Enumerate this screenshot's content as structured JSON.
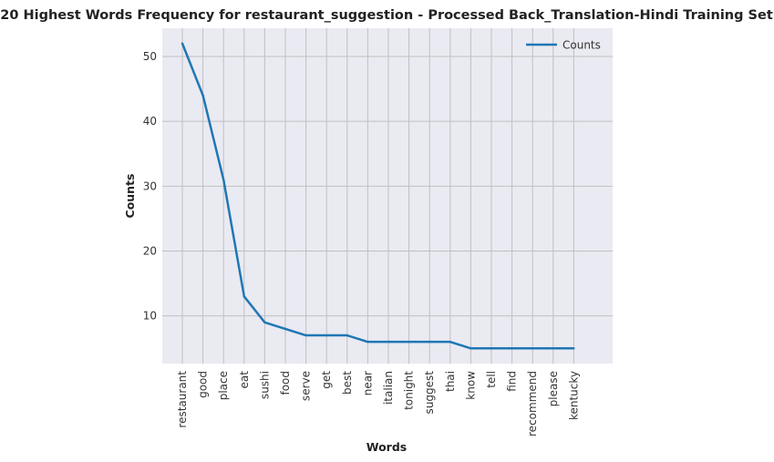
{
  "chart_data": {
    "type": "line",
    "title": "20 Highest Words Frequency for restaurant_suggestion - Processed Back_Translation-Hindi Training Set",
    "xlabel": "Words",
    "ylabel": "Counts",
    "categories": [
      "restaurant",
      "good",
      "place",
      "eat",
      "sushi",
      "food",
      "serve",
      "get",
      "best",
      "near",
      "italian",
      "tonight",
      "suggest",
      "thai",
      "know",
      "tell",
      "find",
      "recommend",
      "please",
      "kentucky"
    ],
    "series": [
      {
        "name": "Counts",
        "values": [
          52,
          44,
          31,
          13,
          9,
          8,
          7,
          7,
          7,
          6,
          6,
          6,
          6,
          6,
          5,
          5,
          5,
          5,
          5,
          5
        ],
        "color": "#1f77b4"
      }
    ],
    "ylim": [
      2.65,
      54.35
    ],
    "yticks": [
      10,
      20,
      30,
      40,
      50
    ],
    "grid": true,
    "legend": "top-right",
    "background_color": "#eaeaf2",
    "grid_color": "#c0c0c0"
  }
}
